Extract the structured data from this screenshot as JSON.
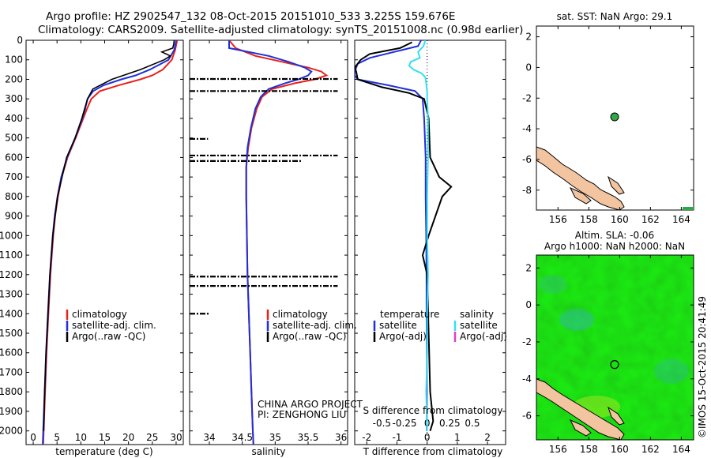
{
  "header": {
    "line1": "Argo profile: HZ 2902547_132 08-Oct-2015 20151010_533 3.225S 159.676E",
    "line2": "Climatology: CARS2009. Satellite-adjusted climatology: synTS_20151008.nc (0.98d earlier)"
  },
  "depth_axis": {
    "ticks": [
      0,
      100,
      200,
      300,
      400,
      500,
      600,
      700,
      800,
      900,
      1000,
      1100,
      1200,
      1300,
      1400,
      1500,
      1600,
      1700,
      1800,
      1900,
      2000
    ],
    "range": [
      0,
      2070
    ]
  },
  "colors": {
    "climatology": "#e8211a",
    "satellite": "#1f2fd8",
    "argo": "#000000",
    "satellite_salinity": "#33e0f0",
    "argo_salinity_adj": "#e040c0",
    "land": "#f2c4a0",
    "float_marker": "#2fa84a"
  },
  "panels": {
    "temperature": {
      "xlabel": "temperature (deg C)",
      "legend": [
        "climatology",
        "satellite-adj. clim.",
        "Argo(..raw -QC)"
      ]
    },
    "salinity": {
      "xlabel": "salinity",
      "legend": [
        "climatology",
        "satellite-adj. clim.",
        "Argo(..raw -QC)"
      ],
      "credit1": "CHINA ARGO PROJECT",
      "credit2": "PI: ZENGHONG LIU"
    },
    "difference": {
      "s_label": "S difference from climatology",
      "xlabel": "T difference from climatology",
      "legend_temp_head": "temperature",
      "legend_sal_head": "salinity",
      "legend_temp": [
        "satellite",
        "Argo(-adj)"
      ],
      "legend_sal": [
        "satellite",
        "Argo(-adj)"
      ]
    },
    "sst_map": {
      "title": "sat. SST: NaN Argo: 29.1",
      "xticks": [
        156,
        158,
        160,
        162,
        164
      ],
      "yticks": [
        2,
        0,
        -2,
        -4,
        -6,
        -8
      ]
    },
    "sla_map": {
      "title1": "Altim. SLA: -0.06",
      "title2": "Argo h1000: NaN h2000: NaN",
      "xticks": [
        156,
        158,
        160,
        162,
        164
      ],
      "yticks": [
        2,
        0,
        -2,
        -4,
        -6
      ]
    }
  },
  "float_position": {
    "lon": 159.676,
    "lat": -3.225
  },
  "stamp": "©IMOS 15-Oct-2015 20:41:49",
  "chart_data": [
    {
      "type": "line",
      "xlabel": "temperature (deg C)",
      "ylabel": "",
      "xlim": [
        -1.5,
        31.5
      ],
      "xticks": [
        0,
        5,
        10,
        15,
        20,
        25,
        30
      ],
      "ylim": [
        0,
        2070
      ],
      "y_inverted": true,
      "series": [
        {
          "name": "climatology",
          "depth": [
            0,
            50,
            100,
            150,
            180,
            200,
            230,
            260,
            300,
            350,
            400,
            500,
            600,
            700,
            800,
            900,
            1000,
            1200,
            1400,
            1600,
            1800,
            2000,
            2070
          ],
          "values": [
            30.2,
            29.8,
            29.1,
            27.2,
            25.0,
            22.5,
            18.0,
            14.0,
            12.2,
            11.3,
            10.5,
            8.9,
            7.2,
            6.0,
            5.2,
            4.6,
            4.2,
            3.6,
            3.2,
            2.8,
            2.5,
            2.2,
            2.1
          ]
        },
        {
          "name": "satellite-adj. clim.",
          "depth": [
            0,
            50,
            100,
            150,
            180,
            200,
            230,
            260,
            300,
            350,
            400,
            500,
            600,
            700,
            800,
            900,
            1000,
            1200,
            1400,
            1600,
            1800,
            2000,
            2070
          ],
          "values": [
            30.0,
            29.6,
            28.4,
            24.5,
            21.5,
            18.5,
            14.8,
            12.6,
            11.4,
            10.9,
            10.3,
            8.8,
            7.1,
            5.9,
            5.1,
            4.5,
            4.1,
            3.5,
            3.1,
            2.7,
            2.4,
            2.1,
            2.0
          ]
        },
        {
          "name": "Argo(..raw -QC)",
          "depth": [
            0,
            20,
            40,
            60,
            80,
            100,
            150,
            200,
            250,
            300,
            400,
            500,
            600,
            800,
            1000,
            1200,
            1400,
            1600,
            1800,
            2000
          ],
          "values": [
            29.6,
            29.5,
            29.3,
            27.0,
            28.8,
            27.5,
            22.5,
            16.5,
            12.5,
            11.4,
            10.2,
            8.8,
            7.0,
            5.1,
            4.1,
            3.5,
            3.1,
            2.7,
            2.4,
            2.2
          ]
        }
      ]
    },
    {
      "type": "line",
      "xlabel": "salinity",
      "ylabel": "",
      "xlim": [
        33.7,
        36.1
      ],
      "xticks": [
        34,
        34.5,
        35,
        35.5,
        36
      ],
      "ylim": [
        0,
        2070
      ],
      "y_inverted": true,
      "series": [
        {
          "name": "climatology",
          "depth": [
            0,
            40,
            80,
            110,
            140,
            160,
            180,
            200,
            220,
            250,
            290,
            350,
            450,
            550,
            650,
            800,
            1000,
            1200,
            1400,
            1600,
            1800,
            2000,
            2070
          ],
          "values": [
            34.3,
            34.4,
            34.7,
            35.1,
            35.5,
            35.7,
            35.78,
            35.6,
            35.3,
            34.95,
            34.8,
            34.72,
            34.64,
            34.59,
            34.56,
            34.56,
            34.57,
            34.58,
            34.6,
            34.62,
            34.64,
            34.66,
            34.67
          ]
        },
        {
          "name": "satellite-adj. clim.",
          "depth": [
            0,
            40,
            80,
            110,
            140,
            160,
            180,
            200,
            220,
            250,
            290,
            350,
            450,
            550,
            650,
            800,
            1000,
            1200,
            1400,
            1600,
            1800,
            2000,
            2070
          ],
          "values": [
            34.3,
            34.3,
            34.9,
            35.2,
            35.45,
            35.55,
            35.5,
            35.35,
            35.15,
            34.9,
            34.78,
            34.7,
            34.63,
            34.58,
            34.56,
            34.56,
            34.57,
            34.58,
            34.6,
            34.62,
            34.64,
            34.66,
            34.67
          ]
        }
      ],
      "argo_qc_levels": [
        {
          "depth": 198,
          "s_from": 33.7,
          "s_to": 35.95
        },
        {
          "depth": 260,
          "s_from": 33.7,
          "s_to": 35.95
        },
        {
          "depth": 505,
          "s_from": 33.7,
          "s_to": 33.98
        },
        {
          "depth": 590,
          "s_from": 33.7,
          "s_to": 35.95
        },
        {
          "depth": 618,
          "s_from": 33.7,
          "s_to": 35.4
        },
        {
          "depth": 1210,
          "s_from": 33.7,
          "s_to": 35.95
        },
        {
          "depth": 1258,
          "s_from": 33.7,
          "s_to": 35.95
        },
        {
          "depth": 1400,
          "s_from": 33.7,
          "s_to": 34.0
        }
      ]
    },
    {
      "type": "line",
      "xlabel": "T difference from climatology",
      "ylabel": "",
      "xlim": [
        -2.4,
        2.6
      ],
      "xticks": [
        -2,
        -1,
        0,
        1,
        2
      ],
      "x2label": "S difference from climatology",
      "x2ticks": [
        -0.5,
        -0.25,
        0,
        0.25,
        0.5
      ],
      "ylim": [
        0,
        2070
      ],
      "y_inverted": true,
      "series": [
        {
          "name": "temperature satellite",
          "depth": [
            0,
            30,
            60,
            90,
            120,
            140,
            160,
            180,
            200,
            230,
            260,
            300,
            400,
            600,
            800,
            1000,
            1200,
            1400,
            1600,
            1800,
            2000
          ],
          "values": [
            -0.2,
            -0.3,
            -1.1,
            -1.9,
            -2.3,
            -2.35,
            -2.4,
            -2.4,
            -2.3,
            -1.3,
            -0.4,
            -0.15,
            -0.1,
            -0.05,
            -0.05,
            -0.03,
            -0.02,
            -0.02,
            -0.01,
            -0.01,
            -0.01
          ]
        },
        {
          "name": "temperature Argo(-adj)",
          "depth": [
            10,
            40,
            70,
            100,
            140,
            160,
            200,
            240,
            270,
            300,
            400,
            600,
            700,
            750,
            800,
            1000,
            1100,
            1200,
            1500,
            1800,
            1950,
            2000
          ],
          "values": [
            -0.5,
            -0.9,
            -1.9,
            -2.2,
            -2.4,
            -2.35,
            -2.3,
            -1.5,
            -0.6,
            -0.1,
            0.05,
            0.1,
            0.4,
            0.8,
            0.5,
            0.05,
            -0.15,
            0.0,
            0.05,
            0.1,
            0.2,
            0.1
          ]
        },
        {
          "name": "salinity satellite",
          "depth": [
            0,
            30,
            60,
            90,
            110,
            130,
            150,
            170,
            190,
            220,
            260,
            300,
            400,
            600,
            800,
            1000,
            1200,
            1400,
            1600,
            1800,
            2000
          ],
          "values": [
            -0.02,
            -0.04,
            -0.1,
            -0.08,
            -0.18,
            -0.2,
            -0.15,
            -0.06,
            -0.02,
            -0.01,
            0.0,
            0.0,
            0.01,
            0.01,
            0.0,
            0.0,
            0.01,
            0.0,
            0.0,
            -0.01,
            0.0
          ]
        }
      ]
    }
  ]
}
